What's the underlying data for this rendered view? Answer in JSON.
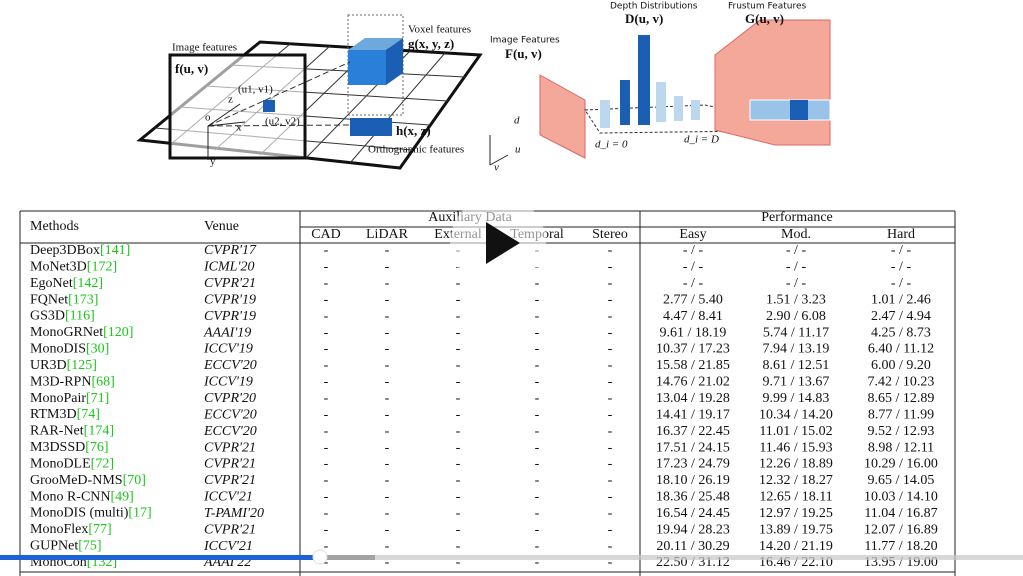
{
  "figure_left": {
    "image_label": "Image features",
    "image_symbol": "f(u, v)",
    "voxel_label": "Voxel features",
    "voxel_symbol": "g(x, y, z)",
    "ortho_symbol": "h(x, z)",
    "ortho_label": "Orthographic features",
    "point1": "(u1, v1)",
    "point2": "(u2, v2)",
    "axis_z": "z",
    "axis_x": "x",
    "axis_y": "y",
    "origin": "o"
  },
  "figure_right": {
    "depth_label": "Depth Distributions",
    "depth_symbol": "D(u, v)",
    "frustum_label": "Frustum Features",
    "frustum_symbol": "G(u, v)",
    "image_label": "Image Features",
    "image_symbol": "F(u, v)",
    "axis_d": "d",
    "axis_u": "u",
    "axis_v": "v",
    "d_start": "d_i = 0",
    "d_end": "d_i = D"
  },
  "table": {
    "headers": {
      "methods": "Methods",
      "venue": "Venue",
      "auxiliary": "Auxiliary Data",
      "aux_columns": [
        "CAD",
        "LiDAR",
        "External",
        "Temporal",
        "Stereo"
      ],
      "performance": "Performance",
      "perf_columns": [
        "Easy",
        "Mod.",
        "Hard"
      ]
    },
    "rows": [
      {
        "method": "Deep3DBox",
        "ref": "[141]",
        "venue": "CVPR'17",
        "aux": [
          "-",
          "-",
          "-",
          "-",
          "-"
        ],
        "easy": "- / -",
        "mod": "- / -",
        "hard": "- / -"
      },
      {
        "method": "MoNet3D",
        "ref": "[172]",
        "venue": "ICML'20",
        "aux": [
          "-",
          "-",
          "-",
          "-",
          "-"
        ],
        "easy": "- / -",
        "mod": "- / -",
        "hard": "- / -"
      },
      {
        "method": "EgoNet",
        "ref": "[142]",
        "venue": "CVPR'21",
        "aux": [
          "-",
          "-",
          "-",
          "-",
          "-"
        ],
        "easy": "- / -",
        "mod": "- / -",
        "hard": "- / -"
      },
      {
        "method": "FQNet",
        "ref": "[173]",
        "venue": "CVPR'19",
        "aux": [
          "-",
          "-",
          "-",
          "-",
          "-"
        ],
        "easy": "2.77 / 5.40",
        "mod": "1.51 / 3.23",
        "hard": "1.01 / 2.46"
      },
      {
        "method": "GS3D",
        "ref": "[116]",
        "venue": "CVPR'19",
        "aux": [
          "-",
          "-",
          "-",
          "-",
          "-"
        ],
        "easy": "4.47 / 8.41",
        "mod": "2.90 / 6.08",
        "hard": "2.47 / 4.94"
      },
      {
        "method": "MonoGRNet",
        "ref": "[120]",
        "venue": "AAAI'19",
        "aux": [
          "-",
          "-",
          "-",
          "-",
          "-"
        ],
        "easy": "9.61 / 18.19",
        "mod": "5.74 / 11.17",
        "hard": "4.25 / 8.73"
      },
      {
        "method": "MonoDIS",
        "ref": "[30]",
        "venue": "ICCV'19",
        "aux": [
          "-",
          "-",
          "-",
          "-",
          "-"
        ],
        "easy": "10.37 / 17.23",
        "mod": "7.94 / 13.19",
        "hard": "6.40 / 11.12"
      },
      {
        "method": "UR3D",
        "ref": "[125]",
        "venue": "ECCV'20",
        "aux": [
          "-",
          "-",
          "-",
          "-",
          "-"
        ],
        "easy": "15.58 / 21.85",
        "mod": "8.61 / 12.51",
        "hard": "6.00 / 9.20"
      },
      {
        "method": "M3D-RPN",
        "ref": "[68]",
        "venue": "ICCV'19",
        "aux": [
          "-",
          "-",
          "-",
          "-",
          "-"
        ],
        "easy": "14.76 / 21.02",
        "mod": "9.71 / 13.67",
        "hard": "7.42 / 10.23"
      },
      {
        "method": "MonoPair",
        "ref": "[71]",
        "venue": "CVPR'20",
        "aux": [
          "-",
          "-",
          "-",
          "-",
          "-"
        ],
        "easy": "13.04 / 19.28",
        "mod": "9.99 / 14.83",
        "hard": "8.65 / 12.89"
      },
      {
        "method": "RTM3D",
        "ref": "[74]",
        "venue": "ECCV'20",
        "aux": [
          "-",
          "-",
          "-",
          "-",
          "-"
        ],
        "easy": "14.41 / 19.17",
        "mod": "10.34 / 14.20",
        "hard": "8.77 / 11.99"
      },
      {
        "method": "RAR-Net",
        "ref": "[174]",
        "venue": "ECCV'20",
        "aux": [
          "-",
          "-",
          "-",
          "-",
          "-"
        ],
        "easy": "16.37 / 22.45",
        "mod": "11.01 / 15.02",
        "hard": "9.52 / 12.93"
      },
      {
        "method": "M3DSSD",
        "ref": "[76]",
        "venue": "CVPR'21",
        "aux": [
          "-",
          "-",
          "-",
          "-",
          "-"
        ],
        "easy": "17.51 / 24.15",
        "mod": "11.46 / 15.93",
        "hard": "8.98 / 12.11"
      },
      {
        "method": "MonoDLE",
        "ref": "[72]",
        "venue": "CVPR'21",
        "aux": [
          "-",
          "-",
          "-",
          "-",
          "-"
        ],
        "easy": "17.23 / 24.79",
        "mod": "12.26 / 18.89",
        "hard": "10.29 / 16.00"
      },
      {
        "method": "GrooMeD-NMS",
        "ref": "[70]",
        "venue": "CVPR'21",
        "aux": [
          "-",
          "-",
          "-",
          "-",
          "-"
        ],
        "easy": "18.10 / 26.19",
        "mod": "12.32 / 18.27",
        "hard": "9.65 / 14.05"
      },
      {
        "method": "Mono R-CNN",
        "ref": "[49]",
        "venue": "ICCV'21",
        "aux": [
          "-",
          "-",
          "-",
          "-",
          "-"
        ],
        "easy": "18.36 / 25.48",
        "mod": "12.65 / 18.11",
        "hard": "10.03 / 14.10"
      },
      {
        "method": "MonoDIS (multi)",
        "ref": "[17]",
        "venue": "T-PAMI'20",
        "aux": [
          "-",
          "-",
          "-",
          "-",
          "-"
        ],
        "easy": "16.54 / 24.45",
        "mod": "12.97 / 19.25",
        "hard": "11.04 / 16.87"
      },
      {
        "method": "MonoFlex",
        "ref": "[77]",
        "venue": "CVPR'21",
        "aux": [
          "-",
          "-",
          "-",
          "-",
          "-"
        ],
        "easy": "19.94 / 28.23",
        "mod": "13.89 / 19.75",
        "hard": "12.07 / 16.89"
      },
      {
        "method": "GUPNet",
        "ref": "[75]",
        "venue": "ICCV'21",
        "aux": [
          "-",
          "-",
          "-",
          "-",
          "-"
        ],
        "easy": "20.11 / 30.29",
        "mod": "14.20 / 21.19",
        "hard": "11.77 / 18.20"
      },
      {
        "method": "MonoCon",
        "ref": "[132]",
        "venue": "AAAI'22",
        "aux": [
          "-",
          "-",
          "-",
          "-",
          "-"
        ],
        "easy": "22.50 / 31.12",
        "mod": "16.46 / 22.10",
        "hard": "13.95 / 19.00"
      }
    ]
  }
}
